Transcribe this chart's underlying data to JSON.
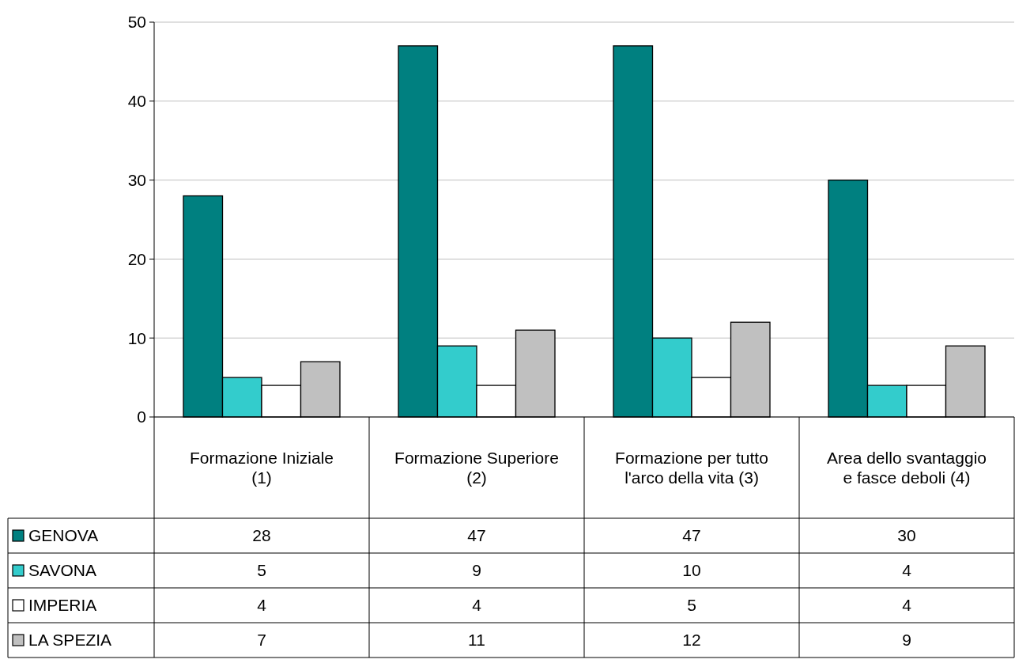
{
  "chart_data": {
    "type": "bar",
    "categories": [
      "Formazione Iniziale (1)",
      "Formazione Superiore (2)",
      "Formazione per tutto l'arco della vita (3)",
      "Area dello svantaggio e fasce deboli (4)"
    ],
    "series": [
      {
        "name": "GENOVA",
        "color": "#008080",
        "values": [
          28,
          47,
          47,
          30
        ]
      },
      {
        "name": "SAVONA",
        "color": "#33cccc",
        "values": [
          5,
          9,
          10,
          4
        ]
      },
      {
        "name": "IMPERIA",
        "color": "#ffffff",
        "values": [
          4,
          4,
          5,
          4
        ]
      },
      {
        "name": "LA SPEZIA",
        "color": "#c0c0c0",
        "values": [
          7,
          11,
          12,
          9
        ]
      }
    ],
    "ylim": [
      0,
      50
    ],
    "yticks": [
      0,
      10,
      20,
      30,
      40,
      50
    ],
    "grid": "y",
    "legend": "bottom",
    "data_labels": true
  }
}
